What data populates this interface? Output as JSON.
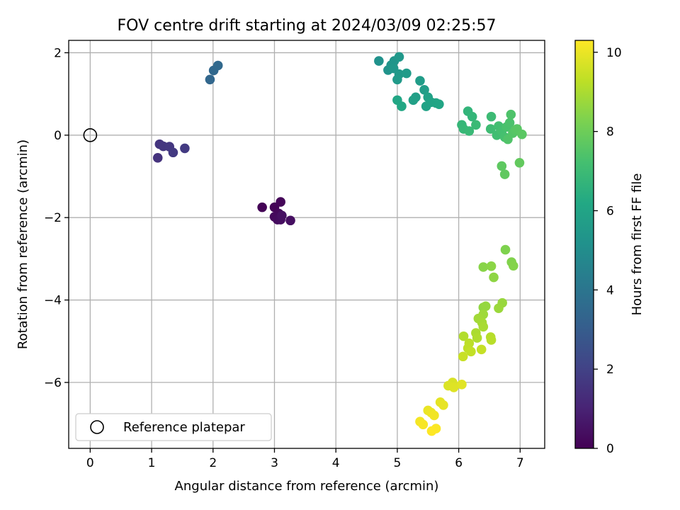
{
  "chart_data": {
    "type": "scatter",
    "title": "FOV centre drift starting at 2024/03/09 02:25:57",
    "xlabel": "Angular distance from reference (arcmin)",
    "ylabel": "Rotation from reference (arcmin)",
    "xlim": [
      -0.35,
      7.4
    ],
    "ylim": [
      -7.6,
      2.3
    ],
    "x_ticks": [
      0,
      1,
      2,
      3,
      4,
      5,
      6,
      7
    ],
    "x_tick_labels": [
      "0",
      "1",
      "2",
      "3",
      "4",
      "5",
      "6",
      "7"
    ],
    "y_ticks": [
      2,
      0,
      -2,
      -4,
      -6
    ],
    "y_tick_labels": [
      "2",
      "0",
      "−2",
      "−4",
      "−6"
    ],
    "grid": true,
    "colorbar": {
      "label": "Hours from first FF file",
      "colormap": "viridis",
      "range": [
        0,
        10.3
      ],
      "ticks": [
        0,
        2,
        4,
        6,
        8,
        10
      ],
      "tick_labels": [
        "0",
        "2",
        "4",
        "6",
        "8",
        "10"
      ]
    },
    "legend": {
      "placement": "lower-left",
      "entries": [
        {
          "label": "Reference platepar",
          "marker": "open-circle",
          "color": "#000000"
        }
      ]
    },
    "reference_point": {
      "x": 0,
      "y": 0
    },
    "points": [
      {
        "x": 2.8,
        "y": -1.75,
        "t": 0.05
      },
      {
        "x": 3.0,
        "y": -1.75,
        "t": 0.1
      },
      {
        "x": 3.1,
        "y": -1.62,
        "t": 0.15
      },
      {
        "x": 3.07,
        "y": -1.9,
        "t": 0.2
      },
      {
        "x": 3.0,
        "y": -1.98,
        "t": 0.25
      },
      {
        "x": 3.05,
        "y": -2.05,
        "t": 0.3
      },
      {
        "x": 3.1,
        "y": -2.05,
        "t": 0.35
      },
      {
        "x": 3.26,
        "y": -2.07,
        "t": 0.4
      },
      {
        "x": 3.12,
        "y": -1.95,
        "t": 0.45
      },
      {
        "x": 1.1,
        "y": -0.55,
        "t": 1.5
      },
      {
        "x": 1.13,
        "y": -0.22,
        "t": 1.55
      },
      {
        "x": 1.19,
        "y": -0.27,
        "t": 1.6
      },
      {
        "x": 1.29,
        "y": -0.28,
        "t": 1.65
      },
      {
        "x": 1.35,
        "y": -0.42,
        "t": 1.7
      },
      {
        "x": 1.54,
        "y": -0.32,
        "t": 1.75
      },
      {
        "x": 1.95,
        "y": 1.35,
        "t": 3.4
      },
      {
        "x": 2.01,
        "y": 1.57,
        "t": 3.45
      },
      {
        "x": 2.08,
        "y": 1.69,
        "t": 3.5
      },
      {
        "x": 4.7,
        "y": 1.8,
        "t": 5.2
      },
      {
        "x": 4.85,
        "y": 1.58,
        "t": 5.25
      },
      {
        "x": 4.9,
        "y": 1.7,
        "t": 5.3
      },
      {
        "x": 4.95,
        "y": 1.8,
        "t": 5.35
      },
      {
        "x": 4.94,
        "y": 1.62,
        "t": 5.4
      },
      {
        "x": 5.03,
        "y": 1.9,
        "t": 5.45
      },
      {
        "x": 5.03,
        "y": 1.48,
        "t": 5.5
      },
      {
        "x": 5.0,
        "y": 1.35,
        "t": 5.55
      },
      {
        "x": 5.15,
        "y": 1.5,
        "t": 5.6
      },
      {
        "x": 5.37,
        "y": 1.32,
        "t": 5.65
      },
      {
        "x": 5.44,
        "y": 1.1,
        "t": 5.7
      },
      {
        "x": 5.3,
        "y": 0.92,
        "t": 5.75
      },
      {
        "x": 5.26,
        "y": 0.85,
        "t": 5.8
      },
      {
        "x": 5.5,
        "y": 0.92,
        "t": 5.85
      },
      {
        "x": 5.47,
        "y": 0.7,
        "t": 5.9
      },
      {
        "x": 5.55,
        "y": 0.8,
        "t": 5.95
      },
      {
        "x": 5.63,
        "y": 0.78,
        "t": 6.0
      },
      {
        "x": 5.68,
        "y": 0.75,
        "t": 6.05
      },
      {
        "x": 5.0,
        "y": 0.85,
        "t": 6.1
      },
      {
        "x": 5.07,
        "y": 0.7,
        "t": 6.15
      },
      {
        "x": 6.15,
        "y": 0.58,
        "t": 6.7
      },
      {
        "x": 6.22,
        "y": 0.45,
        "t": 6.75
      },
      {
        "x": 6.05,
        "y": 0.25,
        "t": 6.8
      },
      {
        "x": 6.08,
        "y": 0.15,
        "t": 6.85
      },
      {
        "x": 6.17,
        "y": 0.1,
        "t": 6.9
      },
      {
        "x": 6.28,
        "y": 0.25,
        "t": 6.95
      },
      {
        "x": 6.53,
        "y": 0.45,
        "t": 7.0
      },
      {
        "x": 6.52,
        "y": 0.15,
        "t": 7.05
      },
      {
        "x": 6.62,
        "y": 0.0,
        "t": 7.1
      },
      {
        "x": 6.65,
        "y": 0.22,
        "t": 7.15
      },
      {
        "x": 6.7,
        "y": 0.1,
        "t": 7.2
      },
      {
        "x": 6.75,
        "y": -0.05,
        "t": 7.25
      },
      {
        "x": 6.78,
        "y": 0.2,
        "t": 7.3
      },
      {
        "x": 6.83,
        "y": 0.3,
        "t": 7.35
      },
      {
        "x": 6.85,
        "y": 0.5,
        "t": 7.4
      },
      {
        "x": 6.8,
        "y": -0.1,
        "t": 7.45
      },
      {
        "x": 6.88,
        "y": 0.05,
        "t": 7.5
      },
      {
        "x": 6.92,
        "y": 0.12,
        "t": 7.55
      },
      {
        "x": 6.95,
        "y": 0.15,
        "t": 7.6
      },
      {
        "x": 7.03,
        "y": 0.02,
        "t": 7.65
      },
      {
        "x": 6.7,
        "y": -0.75,
        "t": 7.7
      },
      {
        "x": 6.75,
        "y": -0.95,
        "t": 7.75
      },
      {
        "x": 6.99,
        "y": -0.67,
        "t": 7.8
      },
      {
        "x": 6.76,
        "y": -2.78,
        "t": 8.3
      },
      {
        "x": 6.86,
        "y": -3.08,
        "t": 8.35
      },
      {
        "x": 6.89,
        "y": -3.17,
        "t": 8.4
      },
      {
        "x": 6.4,
        "y": -3.2,
        "t": 8.45
      },
      {
        "x": 6.53,
        "y": -3.18,
        "t": 8.5
      },
      {
        "x": 6.57,
        "y": -3.45,
        "t": 8.55
      },
      {
        "x": 6.4,
        "y": -4.18,
        "t": 8.6
      },
      {
        "x": 6.44,
        "y": -4.15,
        "t": 8.65
      },
      {
        "x": 6.71,
        "y": -4.07,
        "t": 8.7
      },
      {
        "x": 6.65,
        "y": -4.2,
        "t": 8.75
      },
      {
        "x": 6.4,
        "y": -4.35,
        "t": 8.8
      },
      {
        "x": 6.32,
        "y": -4.45,
        "t": 8.85
      },
      {
        "x": 6.38,
        "y": -4.55,
        "t": 8.9
      },
      {
        "x": 6.4,
        "y": -4.65,
        "t": 8.95
      },
      {
        "x": 6.28,
        "y": -4.8,
        "t": 9.0
      },
      {
        "x": 6.3,
        "y": -4.92,
        "t": 9.05
      },
      {
        "x": 6.08,
        "y": -4.88,
        "t": 9.1
      },
      {
        "x": 6.52,
        "y": -4.9,
        "t": 9.15
      },
      {
        "x": 6.53,
        "y": -4.97,
        "t": 9.2
      },
      {
        "x": 6.17,
        "y": -5.05,
        "t": 9.25
      },
      {
        "x": 6.15,
        "y": -5.17,
        "t": 9.3
      },
      {
        "x": 6.2,
        "y": -5.25,
        "t": 9.35
      },
      {
        "x": 6.37,
        "y": -5.2,
        "t": 9.4
      },
      {
        "x": 6.07,
        "y": -5.37,
        "t": 9.45
      },
      {
        "x": 5.9,
        "y": -6.0,
        "t": 9.7
      },
      {
        "x": 5.83,
        "y": -6.08,
        "t": 9.75
      },
      {
        "x": 5.92,
        "y": -6.12,
        "t": 9.8
      },
      {
        "x": 6.05,
        "y": -6.05,
        "t": 9.85
      },
      {
        "x": 5.7,
        "y": -6.48,
        "t": 9.9
      },
      {
        "x": 5.75,
        "y": -6.55,
        "t": 9.95
      },
      {
        "x": 5.5,
        "y": -6.68,
        "t": 10.0
      },
      {
        "x": 5.55,
        "y": -6.73,
        "t": 10.05
      },
      {
        "x": 5.6,
        "y": -6.8,
        "t": 10.1
      },
      {
        "x": 5.37,
        "y": -6.95,
        "t": 10.15
      },
      {
        "x": 5.42,
        "y": -7.02,
        "t": 10.2
      },
      {
        "x": 5.63,
        "y": -7.12,
        "t": 10.25
      },
      {
        "x": 5.56,
        "y": -7.18,
        "t": 10.3
      }
    ]
  }
}
